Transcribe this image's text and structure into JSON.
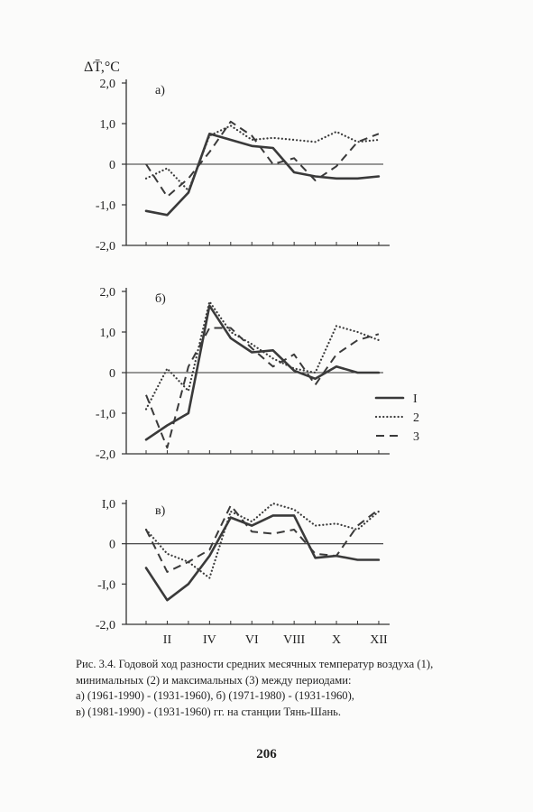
{
  "axis_title": "ΔT̄,°C",
  "x_tick_labels": [
    "II",
    "IV",
    "VI",
    "VIII",
    "X",
    "XII"
  ],
  "chart_data": [
    {
      "type": "line",
      "panel_label": "а)",
      "x": [
        1,
        2,
        3,
        4,
        5,
        6,
        7,
        8,
        9,
        10,
        11,
        12
      ],
      "ylim": [
        -2.0,
        2.0
      ],
      "y_ticks": [
        2.0,
        1.0,
        0,
        -1.0,
        -2.0
      ],
      "y_tick_labels": [
        "2,0",
        "1,0",
        "0",
        "-1,0",
        "-2,0"
      ],
      "ylabel": "ΔT̄,°C",
      "series": [
        {
          "name": "1",
          "style": "solid",
          "values": [
            -1.15,
            -1.25,
            -0.7,
            0.75,
            0.6,
            0.45,
            0.4,
            -0.2,
            -0.3,
            -0.35,
            -0.35,
            -0.3
          ]
        },
        {
          "name": "2",
          "style": "dotted",
          "values": [
            -0.35,
            -0.1,
            -0.65,
            0.7,
            0.95,
            0.6,
            0.65,
            0.6,
            0.55,
            0.8,
            0.55,
            0.6
          ]
        },
        {
          "name": "3",
          "style": "dashed",
          "values": [
            0.0,
            -0.8,
            -0.35,
            0.3,
            1.05,
            0.7,
            0.0,
            0.15,
            -0.4,
            -0.05,
            0.55,
            0.75
          ]
        }
      ]
    },
    {
      "type": "line",
      "panel_label": "б)",
      "x": [
        1,
        2,
        3,
        4,
        5,
        6,
        7,
        8,
        9,
        10,
        11,
        12
      ],
      "ylim": [
        -2.0,
        2.0
      ],
      "y_ticks": [
        2.0,
        1.0,
        0,
        -1.0,
        -2.0
      ],
      "y_tick_labels": [
        "2,0",
        "1,0",
        "0",
        "-1,0",
        "-2,0"
      ],
      "series": [
        {
          "name": "1",
          "style": "solid",
          "values": [
            -1.65,
            -1.3,
            -1.0,
            1.65,
            0.85,
            0.5,
            0.55,
            0.05,
            -0.15,
            0.15,
            0.0,
            0.0
          ]
        },
        {
          "name": "2",
          "style": "dotted",
          "values": [
            -0.9,
            0.1,
            -0.45,
            1.75,
            1.0,
            0.7,
            0.35,
            0.1,
            0.0,
            1.15,
            1.0,
            0.8
          ]
        },
        {
          "name": "3",
          "style": "dashed",
          "values": [
            -0.55,
            -1.85,
            0.15,
            1.1,
            1.1,
            0.6,
            0.15,
            0.45,
            -0.3,
            0.45,
            0.8,
            0.95
          ]
        }
      ],
      "legend": {
        "placement": "right",
        "entries": [
          "I",
          "2",
          "3"
        ]
      }
    },
    {
      "type": "line",
      "panel_label": "в)",
      "x": [
        1,
        2,
        3,
        4,
        5,
        6,
        7,
        8,
        9,
        10,
        11,
        12
      ],
      "ylim": [
        -2.0,
        1.0
      ],
      "y_ticks": [
        1.0,
        0,
        -1.0,
        -2.0
      ],
      "y_tick_labels": [
        "I,0",
        "0",
        "-I,0",
        "-2,0"
      ],
      "series": [
        {
          "name": "1",
          "style": "solid",
          "values": [
            -0.6,
            -1.4,
            -1.0,
            -0.3,
            0.65,
            0.45,
            0.7,
            0.7,
            -0.35,
            -0.3,
            -0.4,
            -0.4
          ]
        },
        {
          "name": "2",
          "style": "dotted",
          "values": [
            0.35,
            -0.25,
            -0.45,
            -0.85,
            0.8,
            0.55,
            1.0,
            0.85,
            0.45,
            0.5,
            0.35,
            0.8
          ]
        },
        {
          "name": "3",
          "style": "dashed",
          "values": [
            0.35,
            -0.7,
            -0.45,
            -0.15,
            0.95,
            0.3,
            0.25,
            0.35,
            -0.25,
            -0.3,
            0.45,
            0.85
          ]
        }
      ]
    }
  ],
  "caption": {
    "line1": "Рис. 3.4. Годовой ход разности средних месячных температур воздуха (1),",
    "line2": "минимальных (2) и максимальных (3) между периодами:",
    "line3": "а) (1961-1990) - (1931-1960), б) (1971-1980) - (1931-1960),",
    "line4": "в) (1981-1990) - (1931-1960) гг. на станции Тянь-Шань."
  },
  "page_number": "206"
}
